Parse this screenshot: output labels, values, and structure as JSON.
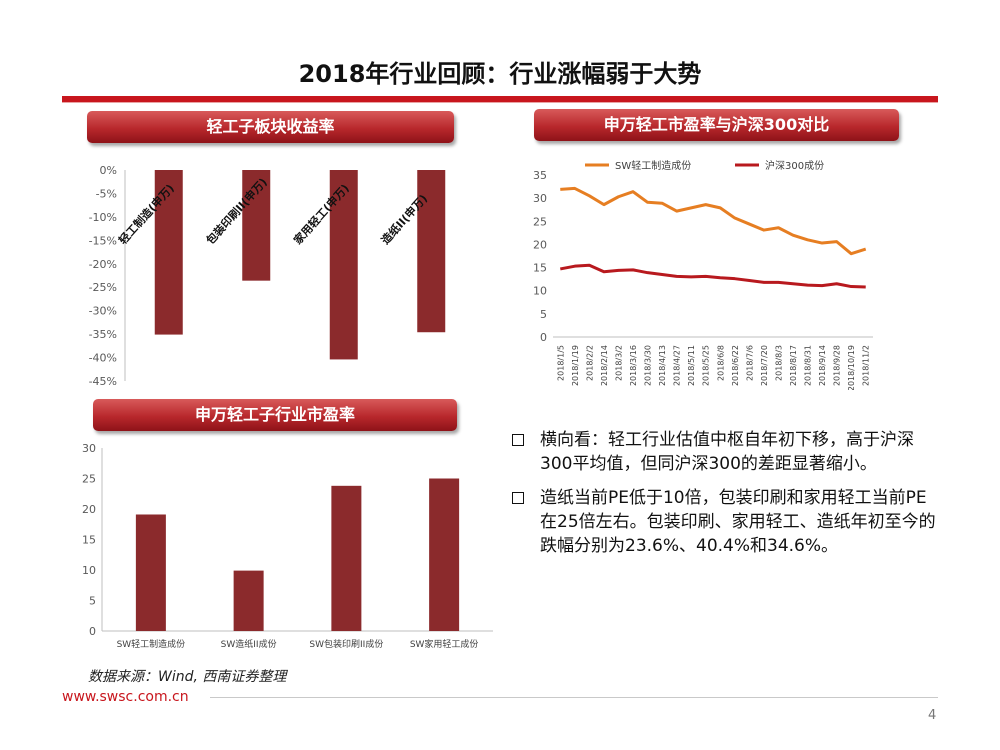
{
  "slide": {
    "title": "2018年行业回顾：行业涨幅弱于大势",
    "source": "数据来源：Wind, 西南证券整理",
    "url": "www.swsc.com.cn",
    "page": "4",
    "colors": {
      "brand_red": "#c8161d",
      "bar": "#8b2a2c",
      "orange": "#e67e22",
      "darkred": "#b8191e"
    }
  },
  "chart1_label": "轻工子板块收益率",
  "chart2_label": "申万轻工市盈率与沪深300对比",
  "chart3_label": "申万轻工子行业市盈率",
  "bullets": [
    "横向看：轻工行业估值中枢自年初下移，高于沪深300平均值，但同沪深300的差距显著缩小。",
    "造纸当前PE低于10倍，包装印刷和家用轻工当前PE在25倍左右。包装印刷、家用轻工、造纸年初至今的跌幅分别为23.6%、40.4%和34.6%。"
  ],
  "chart_data": [
    {
      "type": "bar",
      "title": "轻工子板块收益率",
      "categories": [
        "轻工制造(申万)",
        "包装印刷II(申万)",
        "家用轻工(申万)",
        "造纸II(申万)"
      ],
      "values": [
        -35.1,
        -23.6,
        -40.4,
        -34.6
      ],
      "ylim": [
        -45,
        0
      ],
      "yticks": [
        "0%",
        "-5%",
        "-10%",
        "-15%",
        "-20%",
        "-25%",
        "-30%",
        "-35%",
        "-40%",
        "-45%"
      ],
      "xlabel": "",
      "ylabel": ""
    },
    {
      "type": "line",
      "title": "申万轻工市盈率与沪深300对比",
      "x": [
        "2018/1/5",
        "2018/1/19",
        "2018/2/2",
        "2018/2/14",
        "2018/3/2",
        "2018/3/16",
        "2018/3/30",
        "2018/4/13",
        "2018/4/27",
        "2018/5/11",
        "2018/5/25",
        "2018/6/8",
        "2018/6/22",
        "2018/7/6",
        "2018/7/20",
        "2018/8/3",
        "2018/8/17",
        "2018/8/31",
        "2018/9/14",
        "2018/9/28",
        "2018/10/19",
        "2018/11/2"
      ],
      "series": [
        {
          "name": "SW轻工制造成份",
          "color": "#e67e22",
          "values": [
            31.9,
            32.1,
            30.5,
            28.6,
            30.3,
            31.4,
            29.1,
            28.9,
            27.2,
            27.9,
            28.6,
            27.9,
            25.7,
            24.4,
            23.1,
            23.6,
            22.0,
            21.0,
            20.3,
            20.6,
            18.0,
            19.0
          ]
        },
        {
          "name": "沪深300成份",
          "color": "#b8191e",
          "values": [
            14.7,
            15.3,
            15.5,
            14.1,
            14.4,
            14.5,
            13.9,
            13.5,
            13.1,
            13.0,
            13.1,
            12.8,
            12.6,
            12.2,
            11.8,
            11.8,
            11.5,
            11.2,
            11.1,
            11.5,
            10.9,
            10.8
          ]
        }
      ],
      "ylim": [
        0,
        35
      ],
      "yticks": [
        "0",
        "5",
        "10",
        "15",
        "20",
        "25",
        "30",
        "35"
      ],
      "xlabel": "",
      "ylabel": ""
    },
    {
      "type": "bar",
      "title": "申万轻工子行业市盈率",
      "categories": [
        "SW轻工制造成份",
        "SW造纸II成份",
        "SW包装印刷II成份",
        "SW家用轻工成份"
      ],
      "values": [
        19.1,
        9.9,
        23.8,
        25.0
      ],
      "ylim": [
        0,
        30
      ],
      "yticks": [
        "0",
        "5",
        "10",
        "15",
        "20",
        "25",
        "30"
      ],
      "xlabel": "",
      "ylabel": ""
    }
  ]
}
